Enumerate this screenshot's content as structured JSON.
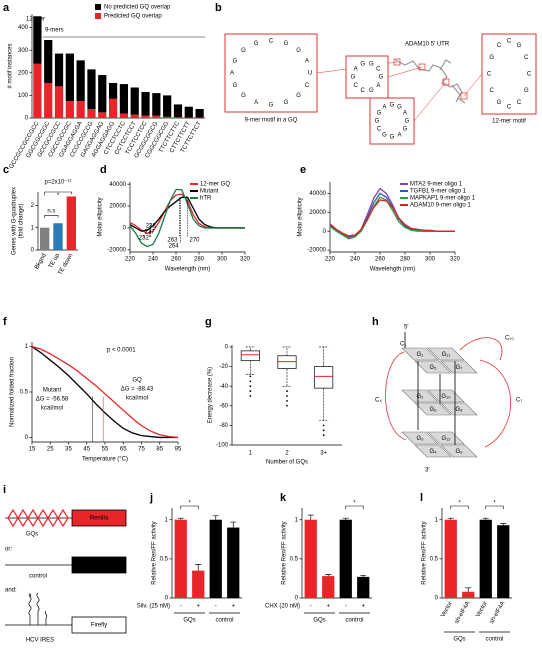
{
  "chart_data": [
    {
      "panel": "a",
      "type": "bar",
      "stacked": true,
      "ylabel": "# motif instances",
      "categories": [
        "GCCGCCGCCGCC",
        "GGCGGCGGC",
        "GCCGCCGCC",
        "CGCCGCCGC",
        "GGAGGAGGA",
        "CCGCCGCCG",
        "GAGGAGGAG",
        "AGGAGGAGG",
        "CTCCTCCTC",
        "CCTCCTCCT",
        "TCCTCCTCC",
        "GCGGCGGCG",
        "CGGCGGCGG",
        "TTCTTCTTC",
        "CTTCTTCTT",
        "TCTTCTTCT"
      ],
      "series": [
        {
          "name": "Predicted GQ overlap",
          "color": "#e8262a",
          "values": [
            240,
            155,
            140,
            75,
            75,
            40,
            25,
            85,
            20,
            15,
            10,
            10,
            5,
            3,
            2,
            2
          ]
        },
        {
          "name": "No predicted GQ overlap",
          "color": "#000000",
          "values": [
            210,
            190,
            145,
            210,
            180,
            175,
            165,
            70,
            130,
            120,
            105,
            100,
            95,
            57,
            48,
            38
          ]
        }
      ],
      "ylim": [
        0,
        460
      ],
      "yticks": [
        0,
        100,
        200,
        300,
        400
      ],
      "annotations": [
        "12-mer",
        "9-mers"
      ]
    },
    {
      "panel": "c",
      "type": "bar",
      "ylabel": [
        "Genes with G-quadruplex",
        "(fold change)"
      ],
      "categories": [
        "Bkgnd",
        "TE up",
        "TE down"
      ],
      "values": [
        1,
        1.2,
        2.4
      ],
      "colors": [
        "#808080",
        "#2a7ab8",
        "#e8262a"
      ],
      "ylim": [
        0,
        2.6
      ],
      "yticks": [
        0,
        1,
        2
      ],
      "annotations": [
        "p=2x10⁻¹¹",
        "n.s",
        "*"
      ]
    },
    {
      "panel": "d",
      "type": "line",
      "xlabel": "Wavelength (nm)",
      "ylabel": "Molar ellipticity",
      "x": [
        220,
        225,
        230,
        235,
        240,
        245,
        250,
        255,
        260,
        265,
        270,
        275,
        280,
        285,
        290,
        295,
        300,
        305,
        310,
        315,
        320
      ],
      "series": [
        {
          "name": "12-mer GQ",
          "color": "#e8262a",
          "values": [
            5000,
            2000,
            -2000,
            -5000,
            -3000,
            5000,
            15000,
            25000,
            30000,
            31000,
            25000,
            12000,
            4000,
            1000,
            0,
            0,
            0,
            0,
            0,
            0,
            0
          ]
        },
        {
          "name": "Mutant",
          "color": "#000000",
          "values": [
            3000,
            0,
            -3000,
            -2000,
            2000,
            8000,
            15000,
            20000,
            24000,
            28000,
            28000,
            18000,
            8000,
            3000,
            1000,
            0,
            0,
            0,
            0,
            0,
            0
          ]
        },
        {
          "name": "hTR",
          "color": "#1a7a4a",
          "values": [
            2000,
            -5000,
            -14000,
            -17000,
            -15000,
            -5000,
            10000,
            25000,
            35000,
            35000,
            22000,
            8000,
            2000,
            0,
            0,
            0,
            0,
            0,
            0,
            0,
            0
          ]
        }
      ],
      "peaks": [
        {
          "value": 238,
          "color": "#1a7a4a"
        },
        {
          "value": 237,
          "color": "#e8262a"
        },
        {
          "value": 232,
          "color": "#000000"
        },
        {
          "value": 263,
          "color": "#1a7a4a"
        },
        {
          "value": 264,
          "color": "#e8262a"
        },
        {
          "value": 270,
          "color": "#000000"
        }
      ],
      "xlim": [
        220,
        320
      ],
      "xticks": [
        220,
        240,
        260,
        280,
        300,
        320
      ],
      "ylim": [
        -22000,
        42000
      ],
      "yticks": [
        -20000,
        0,
        20000,
        40000
      ]
    },
    {
      "panel": "e",
      "type": "line",
      "xlabel": "Wavelength (nm)",
      "ylabel": "Molar ellipticity",
      "x": [
        220,
        225,
        230,
        235,
        240,
        245,
        250,
        255,
        260,
        265,
        270,
        275,
        280,
        285,
        290,
        295,
        300,
        305,
        310,
        315,
        320
      ],
      "series": [
        {
          "name": "MTA2 9-mer oligo 1",
          "color": "#8e44ad",
          "values": [
            8000,
            2000,
            -4000,
            -8000,
            -6000,
            2000,
            18000,
            35000,
            45000,
            40000,
            28000,
            14000,
            6000,
            2000,
            1000,
            0,
            0,
            0,
            0,
            0,
            0
          ]
        },
        {
          "name": "TGFB1 9-mer oligo 1",
          "color": "#2a5db0",
          "values": [
            6000,
            1000,
            -3000,
            -6000,
            -5000,
            2000,
            15000,
            30000,
            40000,
            36000,
            26000,
            13000,
            5000,
            2000,
            1000,
            0,
            0,
            0,
            0,
            0,
            0
          ]
        },
        {
          "name": "MAPKAP1 9-mer oligo 1",
          "color": "#2e9e3e",
          "values": [
            5000,
            0,
            -4000,
            -7000,
            -6000,
            0,
            12000,
            26000,
            36000,
            33000,
            22000,
            10000,
            4000,
            1000,
            0,
            0,
            0,
            0,
            0,
            0,
            0
          ]
        },
        {
          "name": "ADAM10 9-mer oligo 1",
          "color": "#e02020",
          "values": [
            7000,
            2000,
            -2000,
            -5000,
            -4000,
            2000,
            13000,
            25000,
            33000,
            32000,
            25000,
            14000,
            7000,
            3000,
            2000,
            1000,
            1000,
            0,
            0,
            0,
            0
          ]
        }
      ],
      "xlim": [
        220,
        320
      ],
      "xticks": [
        220,
        240,
        260,
        280,
        300,
        320
      ],
      "ylim": [
        -22000,
        52000
      ],
      "yticks": [
        -20000,
        0,
        20000,
        40000
      ]
    },
    {
      "panel": "f",
      "type": "line",
      "xlabel": "Temperature (°C)",
      "ylabel": "Normalized folded fraction",
      "annotations": [
        "p < 0.0001"
      ],
      "x": [
        15,
        20,
        25,
        30,
        35,
        40,
        45,
        50,
        55,
        60,
        65,
        70,
        75,
        80,
        85,
        90,
        95
      ],
      "series": [
        {
          "name": "Mutant",
          "color": "#000000",
          "note": [
            "ΔG = -56.58",
            "kcal/mol"
          ],
          "tm": 48,
          "values": [
            1,
            0.93,
            0.85,
            0.77,
            0.68,
            0.58,
            0.48,
            0.37,
            0.27,
            0.18,
            0.1,
            0.05,
            0.02,
            0.01,
            0,
            0,
            0
          ]
        },
        {
          "name": "GQ",
          "color": "#e8262a",
          "note": [
            "ΔG = -88.43",
            "kcal/mol"
          ],
          "tm": 54,
          "values": [
            1,
            0.97,
            0.92,
            0.86,
            0.8,
            0.73,
            0.65,
            0.57,
            0.48,
            0.39,
            0.3,
            0.21,
            0.13,
            0.07,
            0.03,
            0.01,
            0
          ]
        }
      ],
      "xlim": [
        15,
        95
      ],
      "xticks": [
        15,
        25,
        35,
        45,
        55,
        65,
        75,
        85,
        95
      ],
      "ylim": [
        -0.05,
        1.05
      ],
      "yticks": [
        0,
        0.5,
        1
      ]
    },
    {
      "panel": "g",
      "type": "box",
      "xlabel": "Number of GQs",
      "ylabel": "Energy decrease (%)",
      "categories": [
        "1",
        "2",
        "3+"
      ],
      "boxes": [
        {
          "low": -28,
          "q1": -14,
          "median": -8,
          "q3": -4,
          "high": 0
        },
        {
          "low": -40,
          "q1": -22,
          "median": -15,
          "q3": -9,
          "high": 0
        },
        {
          "low": -75,
          "q1": -42,
          "median": -30,
          "q3": -20,
          "high": 0
        }
      ],
      "outliers": [
        [
          -30,
          -35,
          -40,
          -45,
          -50
        ],
        [
          -45,
          -50,
          -55,
          -60
        ],
        [
          -80,
          -85,
          -90
        ]
      ],
      "median_color": "#e8262a",
      "ylim": [
        -100,
        2
      ],
      "yticks": [
        0,
        -20,
        -40,
        -60,
        -80,
        -100
      ]
    },
    {
      "panel": "j",
      "type": "bar",
      "ylabel": "Relative Ren/FF activity",
      "categories": [
        "-",
        "+",
        "-",
        "+"
      ],
      "values": [
        1,
        0.35,
        1,
        0.9
      ],
      "errors": [
        0.02,
        0.08,
        0.05,
        0.07
      ],
      "colors": [
        "#e8262a",
        "#e8262a",
        "#000000",
        "#000000"
      ],
      "groups": [
        "GQs",
        "control"
      ],
      "treatment": "Silv. (25 nM)",
      "significance": [
        "*"
      ],
      "ylim": [
        0,
        1.15
      ],
      "yticks": [
        0,
        0.5,
        1
      ]
    },
    {
      "panel": "k",
      "type": "bar",
      "ylabel": "Relative Ren/FF activity",
      "categories": [
        "-",
        "+",
        "-",
        "+"
      ],
      "values": [
        1,
        0.28,
        1,
        0.27
      ],
      "errors": [
        0.06,
        0.02,
        0.02,
        0.02
      ],
      "colors": [
        "#e8262a",
        "#e8262a",
        "#000000",
        "#000000"
      ],
      "groups": [
        "GQs",
        "control"
      ],
      "treatment": "CHX (20 nM)",
      "significance": [
        "*"
      ],
      "ylim": [
        0,
        1.15
      ],
      "yticks": [
        0,
        0.5,
        1
      ]
    },
    {
      "panel": "l",
      "type": "bar",
      "ylabel": "Relative Ren/FF activity",
      "categories": [
        "Vector",
        "sh-eIF4A",
        "Vector",
        "sh-eIF4A"
      ],
      "values": [
        1,
        0.08,
        1,
        0.93
      ],
      "errors": [
        0.02,
        0.05,
        0.02,
        0.02
      ],
      "colors": [
        "#e8262a",
        "#e8262a",
        "#000000",
        "#000000"
      ],
      "groups": [
        "GQs",
        "control"
      ],
      "significance": [
        "*",
        "*"
      ],
      "ylim": [
        0,
        1.15
      ],
      "yticks": [
        0,
        0.5,
        1
      ]
    }
  ],
  "diagrams": {
    "b": {
      "panel": "b",
      "title": "ADAM10 5' UTR",
      "captions": [
        "9-mer motif in a GQ",
        "12-mer motif"
      ],
      "boxes": [
        [
          "U",
          "C",
          "G",
          "G",
          "G",
          "A",
          "G",
          "G",
          "A",
          "G",
          "G",
          "G",
          "C",
          "G",
          "G",
          "A"
        ],
        [
          "G",
          "A",
          "G",
          "C",
          "C",
          "G",
          "A",
          "G",
          "G",
          "C"
        ],
        [
          "G",
          "G",
          "A",
          "G",
          "G",
          "C",
          "G",
          "G",
          "A",
          "G",
          "G",
          "A"
        ],
        [
          "C",
          "G",
          "C",
          "C",
          "G",
          "C",
          "C",
          "G",
          "C",
          "C",
          "G",
          "C"
        ]
      ]
    },
    "h": {
      "panel": "h",
      "layers": [
        [
          "G₁",
          "G₁₁",
          "G₅",
          "G₇"
        ],
        [
          "G₂",
          "G₁₀",
          "G₆",
          "G₈"
        ],
        [
          "G₃",
          "G₁₂",
          "G₄",
          "G₉"
        ]
      ],
      "loops": [
        "C₁",
        "C₄",
        "C₇",
        "C₁₀"
      ],
      "ends": [
        "5′",
        "3′"
      ]
    },
    "i": {
      "panel": "i",
      "gq_label": "GQs",
      "or": "or:",
      "reporter": "Renilla",
      "control": "control",
      "and": "and:",
      "firefly": "Firefly",
      "ires": "HCV IRES"
    }
  }
}
